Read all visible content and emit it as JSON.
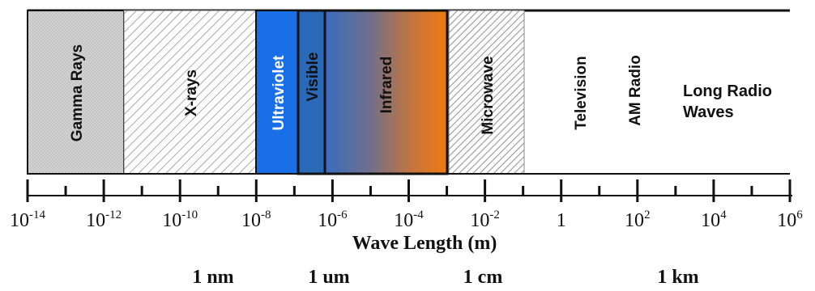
{
  "bands": [
    {
      "key": "gamma",
      "label": "Gamma Rays"
    },
    {
      "key": "xray",
      "label": "X-rays"
    },
    {
      "key": "uv",
      "label": "Ultraviolet"
    },
    {
      "key": "visible",
      "label": "Visible"
    },
    {
      "key": "ir",
      "label": "Infrared"
    },
    {
      "key": "micro",
      "label": "Microwave"
    },
    {
      "key": "tv",
      "label": "Television"
    },
    {
      "key": "am",
      "label": "AM Radio"
    }
  ],
  "long_radio": {
    "line1": "Long Radio",
    "line2": "Waves"
  },
  "axis": {
    "title": "Wave Length (m)",
    "ticks": [
      {
        "base": "10",
        "exp": "-14"
      },
      {
        "base": "10",
        "exp": "-12"
      },
      {
        "base": "10",
        "exp": "-10"
      },
      {
        "base": "10",
        "exp": "-8"
      },
      {
        "base": "10",
        "exp": "-6"
      },
      {
        "base": "10",
        "exp": "-4"
      },
      {
        "base": "10",
        "exp": "-2"
      },
      {
        "base": "1",
        "exp": ""
      },
      {
        "base": "10",
        "exp": "2"
      },
      {
        "base": "10",
        "exp": "4"
      },
      {
        "base": "10",
        "exp": "6"
      }
    ]
  },
  "scale_labels": [
    "1 nm",
    "1 um",
    "1 cm",
    "1 km"
  ],
  "colors": {
    "gamma_fill": "#cfcfcf",
    "uv_fill": "#1a6fe8",
    "visible_fill": "#2a68b8",
    "ir_start": "#3a6cc0",
    "ir_end": "#f07a10",
    "hatch": "#9a9a9a",
    "line": "#111111"
  }
}
